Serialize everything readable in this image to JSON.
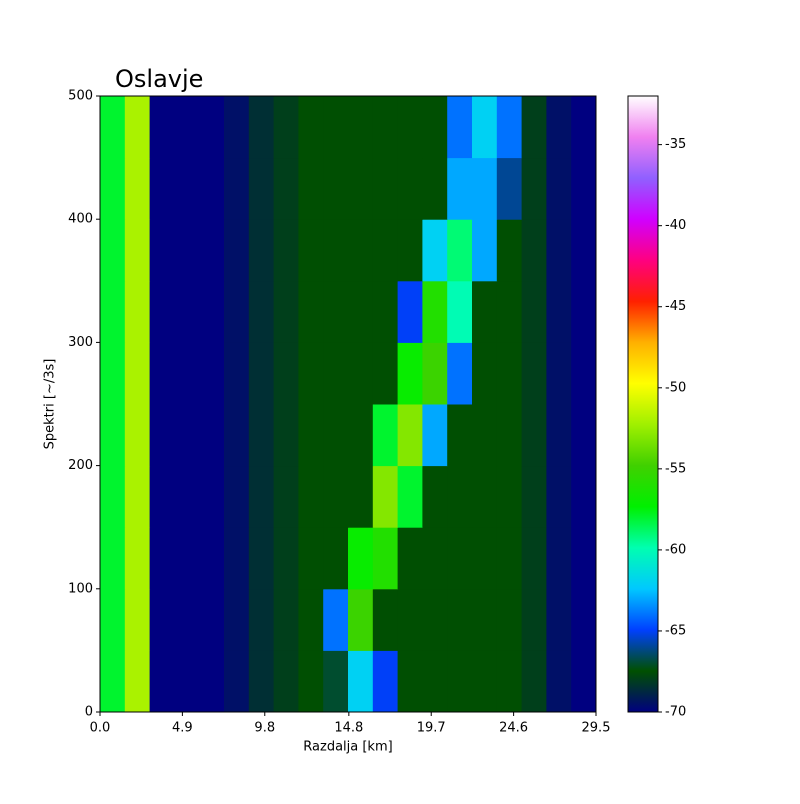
{
  "chart_data": {
    "type": "heatmap",
    "title": "Oslavje",
    "x_label": "Razdalja [km]",
    "y_label": "Spektri [~/3s]",
    "x": [
      0.74,
      2.21,
      3.69,
      5.16,
      6.64,
      8.11,
      9.59,
      11.06,
      12.54,
      14.01,
      15.49,
      16.96,
      18.44,
      19.91,
      21.39,
      22.86,
      24.34,
      25.81,
      27.29,
      28.76
    ],
    "y": [
      25,
      75,
      125,
      175,
      225,
      275,
      325,
      375,
      425,
      475
    ],
    "z": [
      [
        -58,
        -52,
        -70,
        -70,
        -70,
        -69.5,
        -68.5,
        -68,
        -67.5,
        -67,
        -62,
        -65,
        -67.5,
        -67.5,
        -67.5,
        -67.5,
        -67.5,
        -68,
        -69.5,
        -70
      ],
      [
        -58,
        -52,
        -70,
        -70,
        -70,
        -69.5,
        -68.5,
        -68,
        -67.5,
        -64,
        -55,
        -67.5,
        -67.5,
        -67.5,
        -67.5,
        -67.5,
        -67.5,
        -68,
        -69.5,
        -70
      ],
      [
        -58,
        -52,
        -70,
        -70,
        -70,
        -69.5,
        -68.5,
        -68,
        -67.5,
        -67.5,
        -57,
        -56,
        -67.5,
        -67.5,
        -67.5,
        -67.5,
        -67.5,
        -68,
        -69.5,
        -70
      ],
      [
        -58,
        -52,
        -70,
        -70,
        -70,
        -69.5,
        -68.5,
        -68,
        -67.5,
        -67.5,
        -67.5,
        -53,
        -58,
        -67.5,
        -67.5,
        -67.5,
        -67.5,
        -68,
        -69.5,
        -70
      ],
      [
        -58,
        -52,
        -70,
        -70,
        -70,
        -69.5,
        -68.5,
        -68,
        -67.5,
        -67.5,
        -67.5,
        -58,
        -53,
        -63,
        -67.5,
        -67.5,
        -67.5,
        -68,
        -69.5,
        -70
      ],
      [
        -58,
        -52,
        -70,
        -70,
        -70,
        -69.5,
        -68.5,
        -68,
        -67.5,
        -67.5,
        -67.5,
        -67.5,
        -57,
        -55,
        -64,
        -67.5,
        -67.5,
        -68,
        -69.5,
        -70
      ],
      [
        -58,
        -52,
        -70,
        -70,
        -70,
        -69.5,
        -68.5,
        -68,
        -67.5,
        -67.5,
        -67.5,
        -67.5,
        -65,
        -56,
        -60,
        -67.5,
        -67.5,
        -68,
        -69.5,
        -70
      ],
      [
        -58,
        -52,
        -70,
        -70,
        -70,
        -69.5,
        -68.5,
        -68,
        -67.5,
        -67.5,
        -67.5,
        -67.5,
        -67.5,
        -62,
        -59,
        -63,
        -67.5,
        -68,
        -69.5,
        -70
      ],
      [
        -58,
        -52,
        -70,
        -70,
        -70,
        -69.5,
        -68.5,
        -68,
        -67.5,
        -67.5,
        -67.5,
        -67.5,
        -67.5,
        -67.5,
        -63,
        -63,
        -66,
        -68,
        -69.5,
        -70
      ],
      [
        -58,
        -52,
        -70,
        -70,
        -70,
        -69.5,
        -68.5,
        -68,
        -67.5,
        -67.5,
        -67.5,
        -67.5,
        -67.5,
        -67.5,
        -64,
        -62,
        -64,
        -68,
        -69.5,
        -70
      ]
    ],
    "xlim": [
      0,
      29.5
    ],
    "ylim": [
      0,
      500
    ],
    "xticks": [
      {
        "value": 0,
        "label": "0.0"
      },
      4.9,
      9.8,
      14.8,
      19.7,
      24.6,
      29.5
    ],
    "yticks": [
      0,
      100,
      200,
      300,
      400,
      500
    ],
    "clim": [
      -70,
      -32
    ],
    "cticks": [
      -70,
      -65,
      -60,
      -55,
      -50,
      -45,
      -40,
      -35
    ],
    "colormap": [
      "#000080",
      "#005000",
      "#0040ff",
      "#00c8ff",
      "#00ffb0",
      "#00f000",
      "#40d000",
      "#a0f000",
      "#ffff00",
      "#ffb000",
      "#ff2000",
      "#ff0080",
      "#d000ff",
      "#9060ff",
      "#f080f0",
      "#ffffff"
    ]
  }
}
